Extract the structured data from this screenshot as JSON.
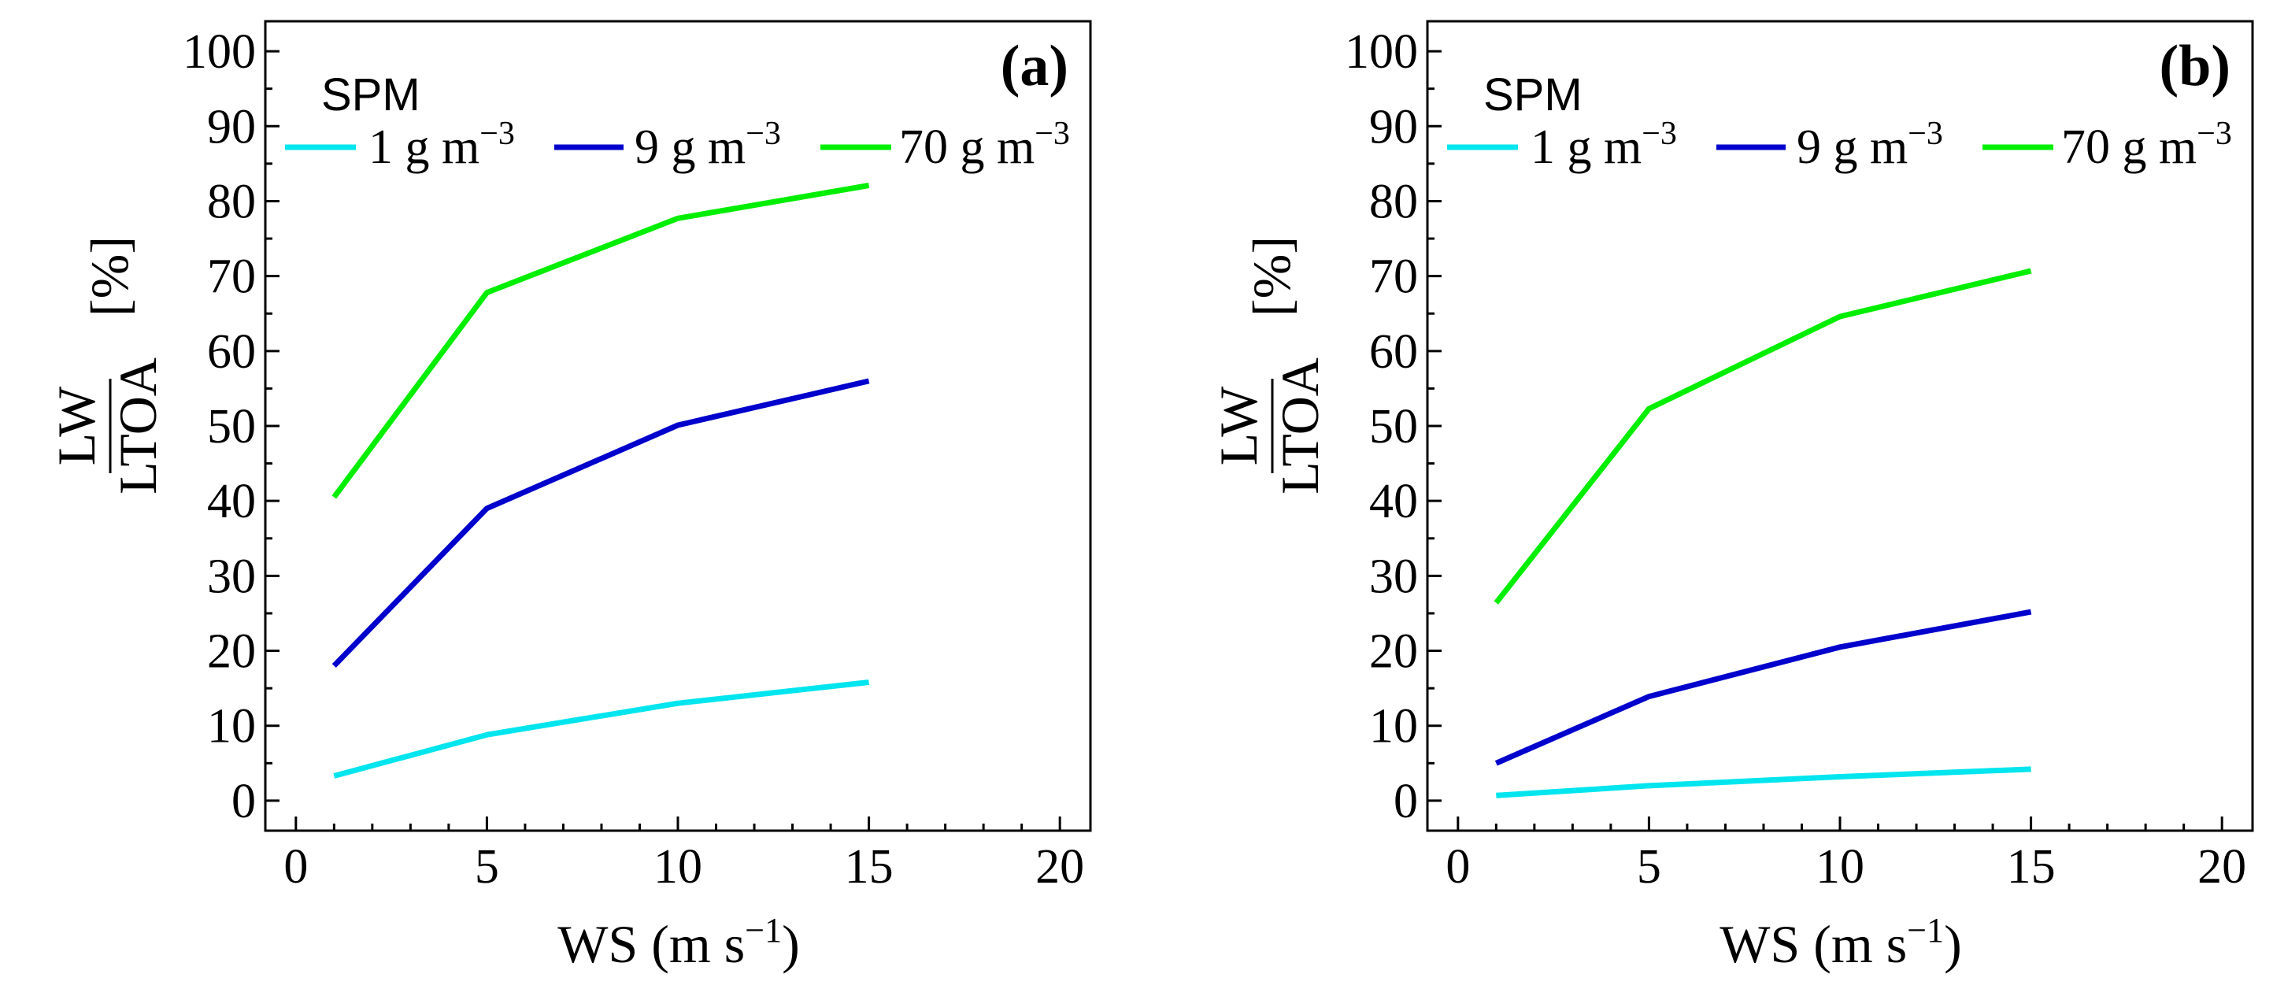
{
  "figure": {
    "x_axis_title": "WS (m s",
    "x_axis_unit_exp": "−1",
    "x_axis_close": ")",
    "y_axis_numerator": "LW",
    "y_axis_denominator": "LTOA",
    "y_axis_unit": "[%]",
    "legend_title": "SPM",
    "legend_unit_prefix": "g m",
    "legend_unit_exp": "−3"
  },
  "chart_data": [
    {
      "type": "line",
      "panel": "(a)",
      "title": "",
      "xlabel": "WS (m s−1)",
      "ylabel": "LW/LTOA [%]",
      "xlim": [
        -0.8,
        20.8
      ],
      "ylim": [
        -4,
        104
      ],
      "xticks": [
        0,
        5,
        10,
        15,
        20
      ],
      "yticks": [
        0,
        10,
        20,
        30,
        40,
        50,
        60,
        70,
        80,
        90,
        100
      ],
      "x": [
        1,
        5,
        10,
        15
      ],
      "legend_position": "top-left",
      "series": [
        {
          "name": "1 g m−3",
          "label_value": "1",
          "color": "#00e5ee",
          "values": [
            3.3,
            8.8,
            13.0,
            15.8
          ]
        },
        {
          "name": "9 g m−3",
          "label_value": "9",
          "color": "#0000cd",
          "values": [
            18.0,
            39.0,
            50.1,
            56.0
          ]
        },
        {
          "name": "70 g m−3",
          "label_value": "70",
          "color": "#00ee00",
          "values": [
            40.5,
            67.8,
            77.7,
            82.1
          ]
        }
      ]
    },
    {
      "type": "line",
      "panel": "(b)",
      "title": "",
      "xlabel": "WS (m s−1)",
      "ylabel": "LW/LTOA [%]",
      "xlim": [
        -0.8,
        20.8
      ],
      "ylim": [
        -4,
        104
      ],
      "xticks": [
        0,
        5,
        10,
        15,
        20
      ],
      "yticks": [
        0,
        10,
        20,
        30,
        40,
        50,
        60,
        70,
        80,
        90,
        100
      ],
      "x": [
        1,
        5,
        10,
        15
      ],
      "legend_position": "top-left",
      "series": [
        {
          "name": "1 g m−3",
          "label_value": "1",
          "color": "#00e5ee",
          "values": [
            0.7,
            2.0,
            3.2,
            4.2
          ]
        },
        {
          "name": "9 g m−3",
          "label_value": "9",
          "color": "#0000cd",
          "values": [
            5.0,
            13.9,
            20.5,
            25.2
          ]
        },
        {
          "name": "70 g m−3",
          "label_value": "70",
          "color": "#00ee00",
          "values": [
            26.4,
            52.3,
            64.6,
            70.7
          ]
        }
      ]
    }
  ]
}
